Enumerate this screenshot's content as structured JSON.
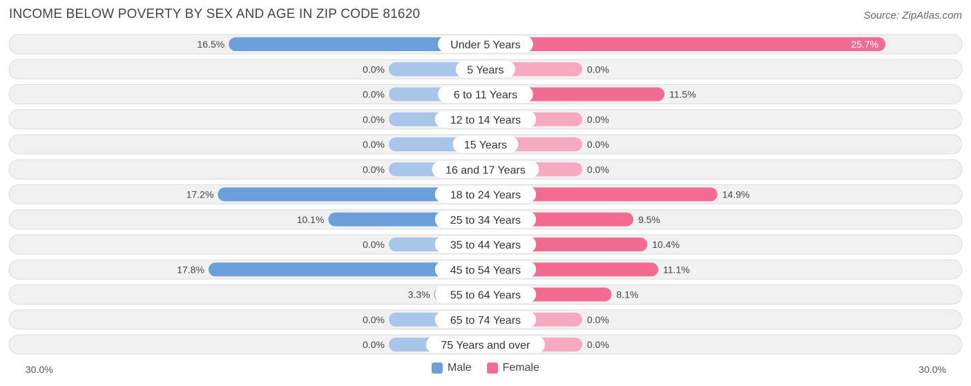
{
  "title": "INCOME BELOW POVERTY BY SEX AND AGE IN ZIP CODE 81620",
  "source": "Source: ZipAtlas.com",
  "colors": {
    "male": "#6a9fdc",
    "male_light": "#a9c6ea",
    "female": "#f26b93",
    "female_light": "#f6a9c0",
    "row_bg": "#f1f1f1",
    "row_border": "#dcdcdc"
  },
  "chart_data": {
    "type": "bar",
    "orientation": "horizontal-diverging",
    "categories": [
      "Under 5 Years",
      "5 Years",
      "6 to 11 Years",
      "12 to 14 Years",
      "15 Years",
      "16 and 17 Years",
      "18 to 24 Years",
      "25 to 34 Years",
      "35 to 44 Years",
      "45 to 54 Years",
      "55 to 64 Years",
      "65 to 74 Years",
      "75 Years and over"
    ],
    "series": [
      {
        "name": "Male",
        "values": [
          16.5,
          0.0,
          0.0,
          0.0,
          0.0,
          0.0,
          17.2,
          10.1,
          0.0,
          17.8,
          3.3,
          0.0,
          0.0
        ],
        "labels": [
          "16.5%",
          "0.0%",
          "0.0%",
          "0.0%",
          "0.0%",
          "0.0%",
          "17.2%",
          "10.1%",
          "0.0%",
          "17.8%",
          "3.3%",
          "0.0%",
          "0.0%"
        ]
      },
      {
        "name": "Female",
        "values": [
          25.7,
          0.0,
          11.5,
          0.0,
          0.0,
          0.0,
          14.9,
          9.5,
          10.4,
          11.1,
          8.1,
          0.0,
          0.0
        ],
        "labels": [
          "25.7%",
          "0.0%",
          "11.5%",
          "0.0%",
          "0.0%",
          "0.0%",
          "14.9%",
          "9.5%",
          "10.4%",
          "11.1%",
          "8.1%",
          "0.0%",
          "0.0%"
        ]
      }
    ],
    "xlim": [
      0,
      30
    ],
    "axis_left_label": "30.0%",
    "axis_right_label": "30.0%",
    "legend": [
      "Male",
      "Female"
    ],
    "legend_position": "bottom-center"
  }
}
